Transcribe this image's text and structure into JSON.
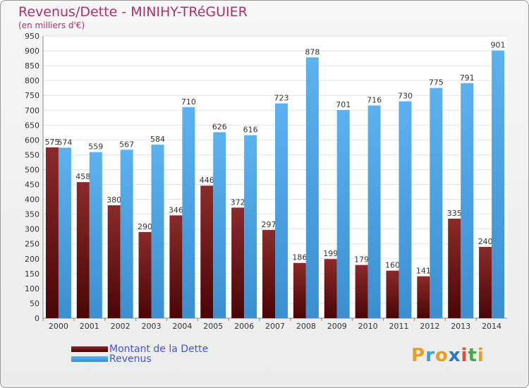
{
  "chart_data": {
    "type": "bar",
    "title": "Revenus/Dette - MINIHY-TRéGUIER",
    "subtitle": "(en milliers d'€)",
    "categories": [
      "2000",
      "2001",
      "2002",
      "2003",
      "2004",
      "2005",
      "2006",
      "2007",
      "2008",
      "2009",
      "2010",
      "2011",
      "2012",
      "2013",
      "2014"
    ],
    "series": [
      {
        "name": "Montant de la Dette",
        "color": "#7a1616",
        "values": [
          575,
          458,
          380,
          290,
          346,
          446,
          372,
          297,
          186,
          199,
          179,
          160,
          141,
          335,
          240
        ]
      },
      {
        "name": "Revenus",
        "color": "#4ea6e6",
        "values": [
          574,
          559,
          567,
          584,
          710,
          626,
          616,
          723,
          878,
          701,
          716,
          730,
          775,
          791,
          901
        ]
      }
    ],
    "ylim": [
      0,
      950
    ],
    "yticks": [
      0,
      50,
      100,
      150,
      200,
      250,
      300,
      350,
      400,
      450,
      500,
      550,
      600,
      650,
      700,
      750,
      800,
      850,
      900,
      950
    ],
    "grid": true,
    "legend": "bottom-left"
  },
  "brand": {
    "text": "Proxiti",
    "colors": [
      "#e8a020",
      "#3aa0d8",
      "#e8a020",
      "#2b74c7",
      "#e84a2a",
      "#4aa84a",
      "#e8a020"
    ]
  }
}
